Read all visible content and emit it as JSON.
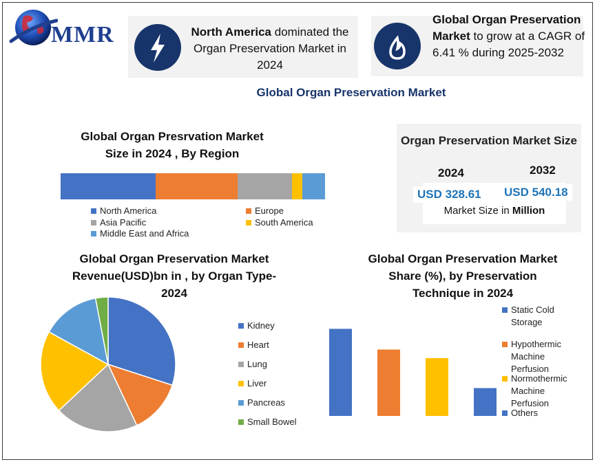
{
  "logo": {
    "text": "MMR",
    "icon": "globe-icon"
  },
  "callout_left": {
    "bold": "North America",
    "text": " dominated the Organ Preservation Market in 2024",
    "icon": "lightning-icon"
  },
  "callout_right": {
    "bold": "Global Organ Preservation Market",
    "text": " to grow at a CAGR of 6.41 % during 2025-2032",
    "icon": "flame-icon"
  },
  "main_title": "Global Organ Preservation Market",
  "colors": {
    "navy": "#17346b",
    "blue": "#4472c4",
    "orange": "#ed7d31",
    "gray": "#a5a5a5",
    "yellow": "#ffc000",
    "lightblue": "#5b9bd5",
    "green": "#70ad47",
    "value_blue": "#1d74b8"
  },
  "market_size": {
    "title": "Organ Preservation Market Size",
    "year1": "2024",
    "year2": "2032",
    "value1": "USD 328.61",
    "value2": "USD 540.18",
    "note_prefix": "Market Size in ",
    "note_bold": "Million"
  },
  "chart_data": [
    {
      "type": "bar",
      "stacked": true,
      "orientation": "horizontal",
      "title": "Global Organ Presrvation Market Size in 2024 , By Region",
      "series": [
        {
          "name": "North America",
          "value": 36,
          "color": "#4472c4"
        },
        {
          "name": "Europe",
          "value": 31,
          "color": "#ed7d31"
        },
        {
          "name": "Asia Pacific",
          "value": 20.5,
          "color": "#a5a5a5"
        },
        {
          "name": "South America",
          "value": 4,
          "color": "#ffc000"
        },
        {
          "name": "Middle East and Africa",
          "value": 8.5,
          "color": "#5b9bd5"
        }
      ],
      "legend": "bottom"
    },
    {
      "type": "pie",
      "title": "Global Organ Preservation Market Revenue(USD)bn in , by Organ Type-2024",
      "slices": [
        {
          "name": "Kidney",
          "value": 30,
          "color": "#4472c4"
        },
        {
          "name": "Heart",
          "value": 13,
          "color": "#ed7d31"
        },
        {
          "name": "Lung",
          "value": 20,
          "color": "#a5a5a5"
        },
        {
          "name": "Liver",
          "value": 20,
          "color": "#ffc000"
        },
        {
          "name": "Pancreas",
          "value": 14,
          "color": "#5b9bd5"
        },
        {
          "name": "Small Bowel",
          "value": 3,
          "color": "#70ad47"
        }
      ],
      "legend": "right"
    },
    {
      "type": "bar",
      "title": "Global Organ Preservation Market Share (%), by Preservation Technique in 2024",
      "categories": [
        "Static Cold Storage",
        "Hypothermic Machine Perfusion",
        "Normothermic Machine Perfusion",
        "Others"
      ],
      "values": [
        122,
        93,
        81,
        39
      ],
      "colors": [
        "#4472c4",
        "#ed7d31",
        "#ffc000",
        "#4472c4"
      ],
      "legend": "right",
      "ylim": [
        0,
        130
      ]
    }
  ]
}
